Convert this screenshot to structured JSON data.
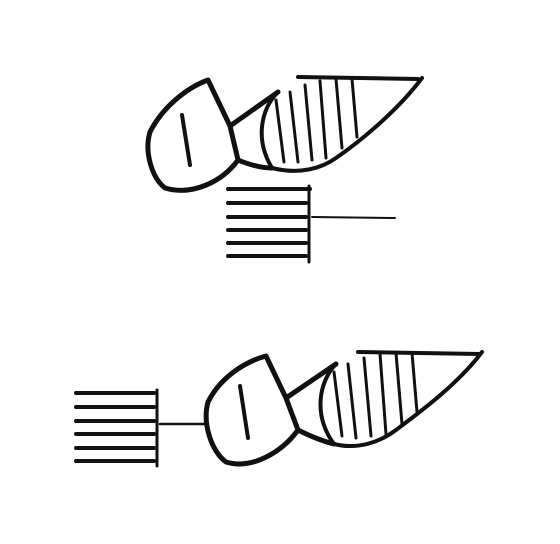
{
  "colors": {
    "background": "#ffffff",
    "stroke": "#111111"
  },
  "figures": [
    {
      "name": "upper-assembly",
      "state": "separated"
    },
    {
      "name": "lower-assembly",
      "state": "connected"
    }
  ]
}
